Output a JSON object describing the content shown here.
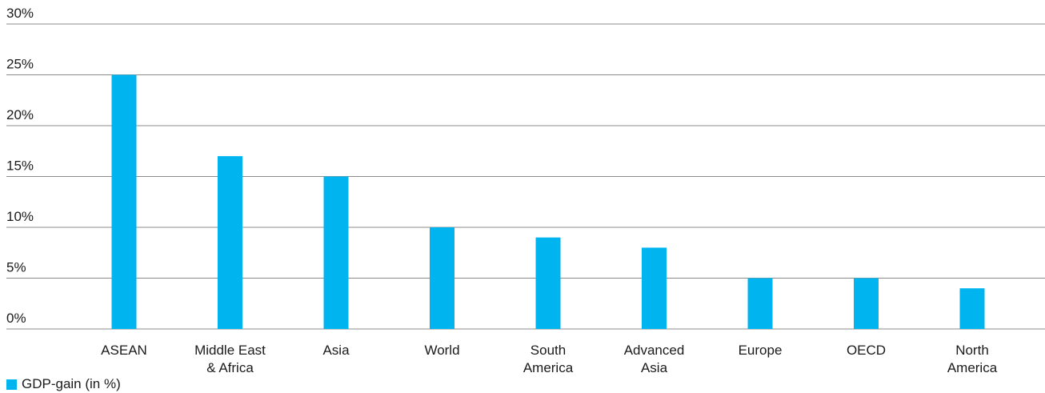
{
  "chart_data": {
    "type": "bar",
    "categories": [
      [
        "ASEAN"
      ],
      [
        "Middle East",
        "& Africa"
      ],
      [
        "Asia"
      ],
      [
        "World"
      ],
      [
        "South",
        "America"
      ],
      [
        "Advanced",
        "Asia"
      ],
      [
        "Europe"
      ],
      [
        "OECD"
      ],
      [
        "North",
        "America"
      ]
    ],
    "series": [
      {
        "name": "GDP-gain (in %)",
        "values": [
          25,
          17,
          15,
          10,
          9,
          8,
          5,
          5,
          4
        ]
      }
    ],
    "ylim": [
      0,
      30
    ],
    "yticks": [
      "0%",
      "5%",
      "10%",
      "15%",
      "20%",
      "25%",
      "30%"
    ],
    "grid": true,
    "legend_position": "bottom-left",
    "bar_color": "#00b5ef",
    "grid_color": "#8c8c8c"
  }
}
